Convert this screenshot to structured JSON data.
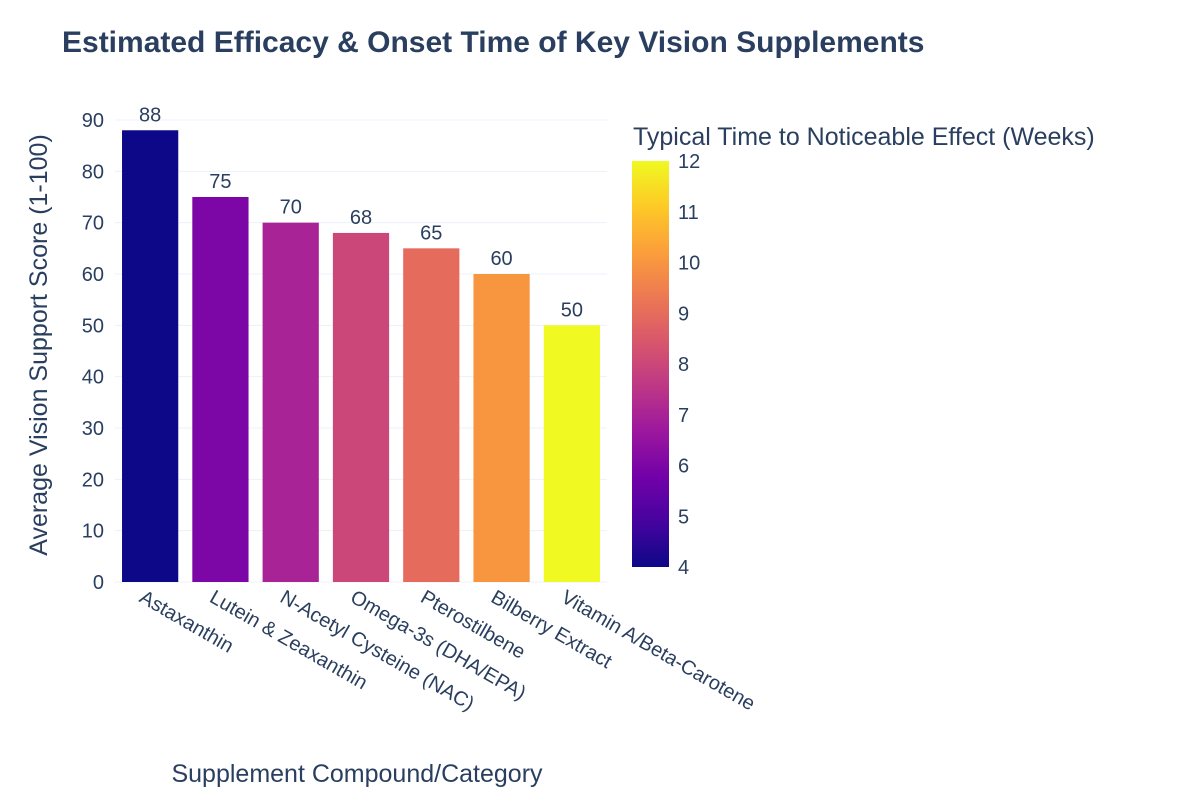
{
  "chart_data": {
    "type": "bar",
    "title": "Estimated Efficacy & Onset Time of Key Vision Supplements",
    "xlabel": "Supplement Compound/Category",
    "ylabel": "Average Vision Support Score (1-100)",
    "ylim": [
      0,
      90
    ],
    "yticks": [
      0,
      10,
      20,
      30,
      40,
      50,
      60,
      70,
      80,
      90
    ],
    "categories": [
      "Astaxanthin",
      "Lutein & Zeaxanthin",
      "N-Acetyl Cysteine (NAC)",
      "Omega-3s (DHA/EPA)",
      "Pterostilbene",
      "Bilberry Extract",
      "Vitamin A/Beta-Carotene"
    ],
    "values": [
      88,
      75,
      70,
      68,
      65,
      60,
      50
    ],
    "color_values": [
      4,
      6,
      7,
      8,
      9,
      10,
      12
    ],
    "colorbar": {
      "title": "Typical Time to Noticeable Effect (Weeks)",
      "range": [
        4,
        12
      ],
      "ticks": [
        4,
        5,
        6,
        7,
        8,
        9,
        10,
        11,
        12
      ],
      "colorscale": [
        "#0d0887",
        "#46039f",
        "#7201a8",
        "#9c179e",
        "#bd3786",
        "#d8576b",
        "#ed7953",
        "#fb9f3a",
        "#fdca26",
        "#f0f921"
      ]
    },
    "grid": true,
    "legend": "none"
  }
}
